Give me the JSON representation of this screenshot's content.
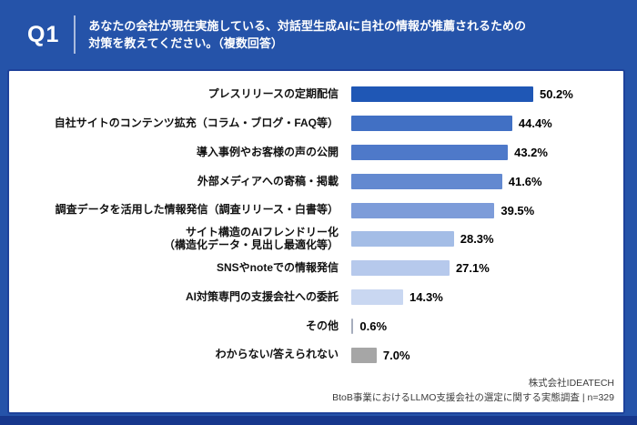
{
  "header": {
    "question_number": "Q1",
    "question_line1": "あなたの会社が現在実施している、対話型生成AIに自社の情報が推薦されるための",
    "question_line2": "対策を教えてください。（複数回答）"
  },
  "chart_data": {
    "type": "bar",
    "orientation": "horizontal",
    "unit": "%",
    "xlim": [
      0,
      55
    ],
    "grid": false,
    "legend": "none",
    "value_labels_shown": true,
    "categories": [
      "プレスリリースの定期配信",
      "自社サイトのコンテンツ拡充（コラム・ブログ・FAQ等）",
      "導入事例やお客様の声の公開",
      "外部メディアへの寄稿・掲載",
      "調査データを活用した情報発信（調査リリース・白書等）",
      "サイト構造のAIフレンドリー化（構造化データ・見出し最適化等）",
      "SNSやnoteでの情報発信",
      "AI対策専門の支援会社への委託",
      "その他",
      "わからない/答えられない"
    ],
    "values": [
      50.2,
      44.4,
      43.2,
      41.6,
      39.5,
      28.3,
      27.1,
      14.3,
      0.6,
      7.0
    ],
    "items": [
      {
        "label_lines": [
          "プレスリリースの定期配信"
        ],
        "value": 50.2,
        "display": "50.2%",
        "color": "#1f57b5"
      },
      {
        "label_lines": [
          "自社サイトのコンテンツ拡充（コラム・ブログ・FAQ等）"
        ],
        "value": 44.4,
        "display": "44.4%",
        "color": "#4170c4"
      },
      {
        "label_lines": [
          "導入事例やお客様の声の公開"
        ],
        "value": 43.2,
        "display": "43.2%",
        "color": "#4e79c9"
      },
      {
        "label_lines": [
          "外部メディアへの寄稿・掲載"
        ],
        "value": 41.6,
        "display": "41.6%",
        "color": "#6389d0"
      },
      {
        "label_lines": [
          "調査データを活用した情報発信（調査リリース・白書等）"
        ],
        "value": 39.5,
        "display": "39.5%",
        "color": "#7d9cd9"
      },
      {
        "label_lines": [
          "サイト構造のAIフレンドリー化",
          "（構造化データ・見出し最適化等）"
        ],
        "value": 28.3,
        "display": "28.3%",
        "color": "#a4bde6"
      },
      {
        "label_lines": [
          "SNSやnoteでの情報発信"
        ],
        "value": 27.1,
        "display": "27.1%",
        "color": "#b6c9ec"
      },
      {
        "label_lines": [
          "AI対策専門の支援会社への委託"
        ],
        "value": 14.3,
        "display": "14.3%",
        "color": "#c9d7f1"
      },
      {
        "label_lines": [
          "その他"
        ],
        "value": 0.6,
        "display": "0.6%",
        "color": "#a6adbd"
      },
      {
        "label_lines": [
          "わからない/答えられない"
        ],
        "value": 7.0,
        "display": "7.0%",
        "color": "#a6a6a6"
      }
    ]
  },
  "footer": {
    "company": "株式会社IDEATECH",
    "source": "BtoB事業におけるLLMO支援会社の選定に関する実態調査 | n=329"
  },
  "colors": {
    "background": "#2553a9",
    "panel_border": "#1e429b",
    "bottom_strip": "#17378c",
    "text_on_blue": "#ffffff",
    "label_text": "#111111",
    "footer_text": "#3c3c3c",
    "bar_darkest": "#1f57b5",
    "bar_lightest": "#c9d7f1",
    "bar_gray": "#a6a6a6"
  }
}
